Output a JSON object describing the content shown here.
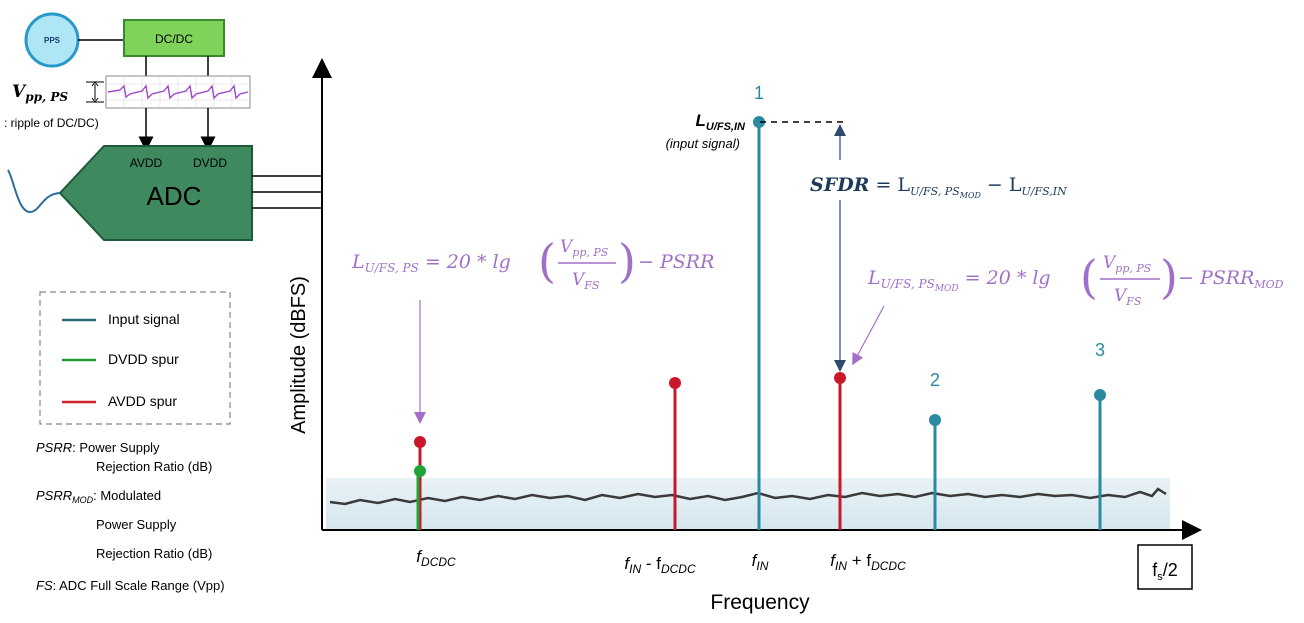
{
  "block_diagram": {
    "ps_label": "PPS",
    "dcdc_label": "DC/DC",
    "ripple_symbol": "V",
    "ripple_subscript": "pp, PS",
    "ripple_caption": ": ripple of DC/DC)",
    "adc_label": "ADC",
    "avdd_label": "AVDD",
    "dvdd_label": "DVDD"
  },
  "legend": {
    "items": [
      {
        "label": "Input signal",
        "color": "#2a6f7a"
      },
      {
        "label": "DVDD spur",
        "color": "#1e9e3a"
      },
      {
        "label": "AVDD spur",
        "color": "#d0202a"
      }
    ]
  },
  "definitions": {
    "psrr_term": "PSRR",
    "psrr_text1": ": Power Supply",
    "psrr_text2": "Rejection Ratio (dB)",
    "psrrmod_term": "PSRR",
    "psrrmod_sub": "MOD",
    "psrrmod_text1": ": Modulated",
    "psrrmod_text2": "Power Supply",
    "psrrmod_text3": "Rejection Ratio (dB)",
    "fs_term": "FS",
    "fs_text": ": ADC Full Scale Range (Vpp)"
  },
  "spectrum": {
    "ylabel": "Amplitude  (dBFS)",
    "xlabel": "Frequency",
    "fs2_label": "f",
    "fs2_sub": "s",
    "fs2_tail": "/2",
    "harmonic_labels": [
      "1",
      "2",
      "3"
    ],
    "x_labels": [
      {
        "main": "f",
        "sub": "DCDC",
        "tail": ""
      },
      {
        "main": "f",
        "sub": "IN",
        "tail": " - f",
        "sub2": "DCDC"
      },
      {
        "main": "f",
        "sub": "IN",
        "tail": ""
      },
      {
        "main": "f",
        "sub": "IN",
        "tail": " + f",
        "sub2": "DCDC"
      }
    ],
    "input_level_label": "L",
    "input_level_sub": "U/FS,IN",
    "input_level_caption": "(input signal)",
    "formula_ps": "L",
    "formula_ps_sub": "U/FS, PS",
    "formula_ps_rhs": "= 20 * lg",
    "formula_num": "V",
    "formula_num_sub": "pp, PS",
    "formula_den": "V",
    "formula_den_sub": "FS",
    "formula_ps_tail": "− PSRR",
    "formula_mod_sub": "U/FS, PS",
    "formula_mod_subsub": "MOD",
    "formula_mod_tail": "− PSRR",
    "formula_mod_tail_sub": "MOD",
    "sfdr_label": "SFDR",
    "sfdr_eq": "= L",
    "sfdr_sub1": "U/FS, PS",
    "sfdr_subsub1": "MOD",
    "sfdr_minus": "− L",
    "sfdr_sub2": "U/FS,IN"
  },
  "colors": {
    "teal": "#2a8aa0",
    "red": "#c8182a",
    "green": "#22a33a",
    "purple": "#a070c8",
    "adc": "#3e8a5e",
    "dcdc": "#7fd25a",
    "noise": "#3a3a3a"
  }
}
